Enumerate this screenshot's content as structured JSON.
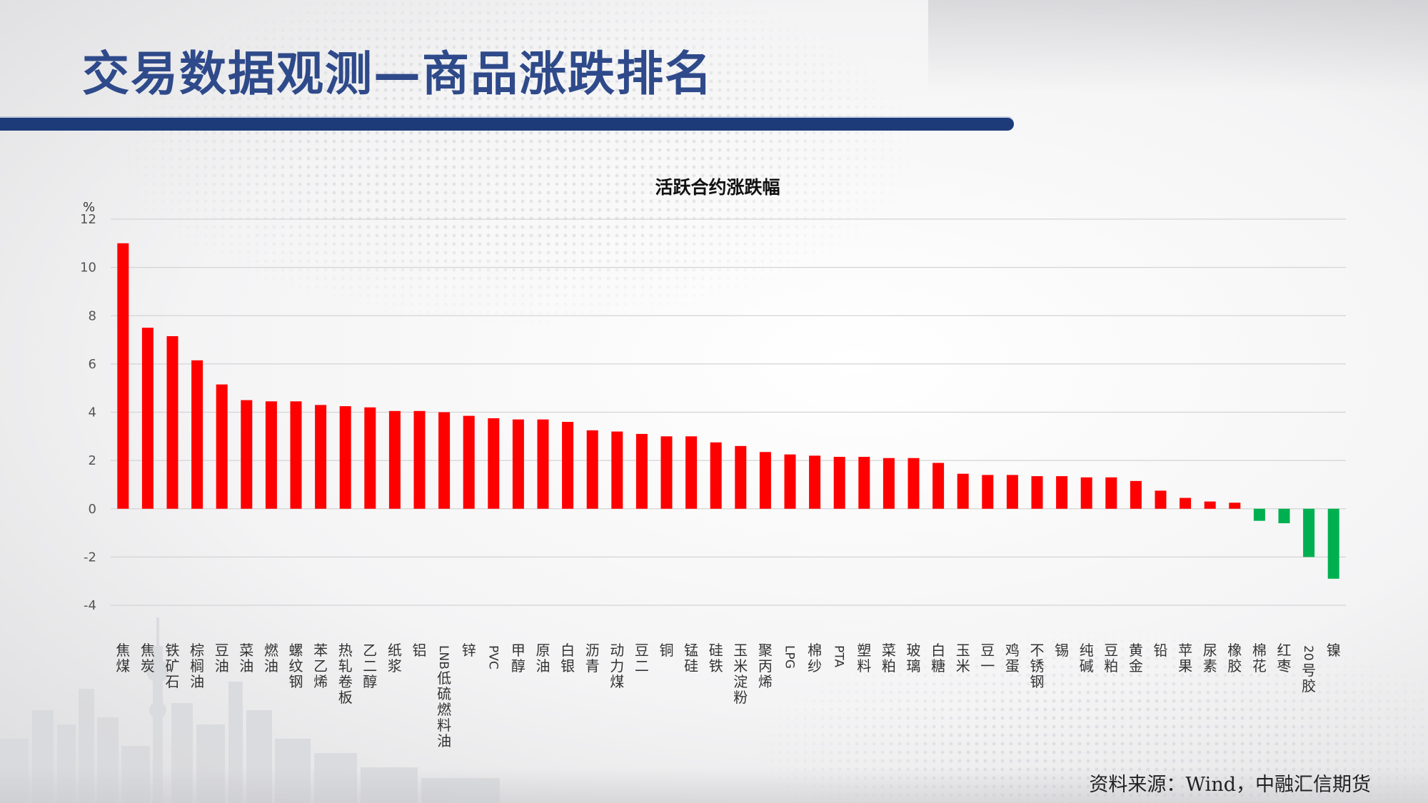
{
  "slide": {
    "title": "交易数据观测—商品涨跌排名",
    "source": "资料来源：Wind，中融汇信期货"
  },
  "colors": {
    "title": "#2f4a8a",
    "title_bar": "#1c3b78",
    "positive": "#ff0000",
    "negative": "#00b050"
  },
  "chart_data": {
    "type": "bar",
    "title": "活跃合约涨跌幅",
    "ylabel": "%",
    "ylim": [
      -4,
      12
    ],
    "yticks": [
      -4,
      -2,
      0,
      2,
      4,
      6,
      8,
      10,
      12
    ],
    "grid": true,
    "legend": "none",
    "categories": [
      "焦煤",
      "焦炭",
      "铁矿石",
      "棕榈油",
      "豆油",
      "菜油",
      "燃油",
      "螺纹钢",
      "苯乙烯",
      "热轧卷板",
      "乙二醇",
      "纸浆",
      "铝",
      "LNB低硫燃料油",
      "锌",
      "PVC",
      "甲醇",
      "原油",
      "白银",
      "沥青",
      "动力煤",
      "豆二",
      "铜",
      "锰硅",
      "硅铁",
      "玉米淀粉",
      "聚丙烯",
      "LPG",
      "棉纱",
      "PTA",
      "塑料",
      "菜粕",
      "玻璃",
      "白糖",
      "玉米",
      "豆一",
      "鸡蛋",
      "不锈钢",
      "锡",
      "纯碱",
      "豆粕",
      "黄金",
      "铅",
      "苹果",
      "尿素",
      "橡胶",
      "棉花",
      "红枣",
      "20号胶",
      "镍"
    ],
    "values": [
      11.0,
      7.5,
      7.15,
      6.15,
      5.15,
      4.5,
      4.45,
      4.45,
      4.3,
      4.25,
      4.2,
      4.05,
      4.05,
      4.0,
      3.85,
      3.75,
      3.7,
      3.7,
      3.6,
      3.25,
      3.2,
      3.1,
      3.0,
      3.0,
      2.75,
      2.6,
      2.35,
      2.25,
      2.2,
      2.15,
      2.15,
      2.1,
      2.1,
      1.9,
      1.45,
      1.4,
      1.4,
      1.35,
      1.35,
      1.3,
      1.3,
      1.15,
      0.75,
      0.45,
      0.3,
      0.25,
      -0.5,
      -0.6,
      -2.0,
      -2.9
    ]
  }
}
